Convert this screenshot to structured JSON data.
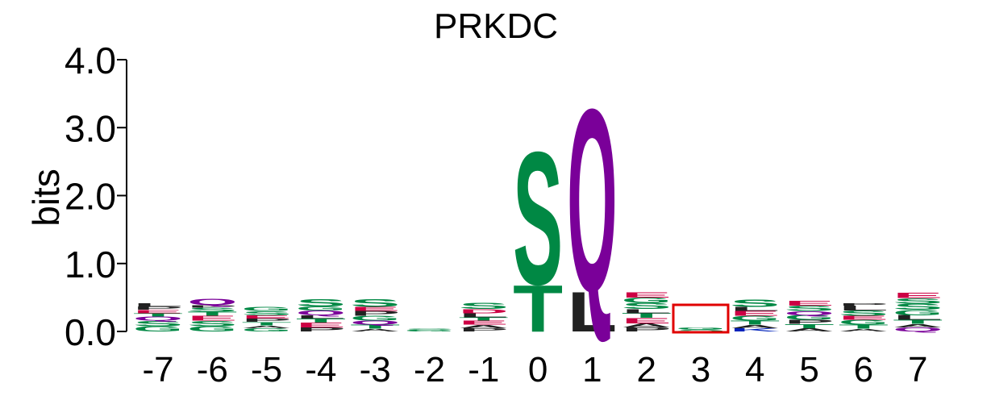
{
  "chart_data": {
    "type": "sequence-logo",
    "title": "PRKDC",
    "xlabel": "",
    "ylabel": "bits",
    "ylim": [
      0,
      4
    ],
    "yticks": [
      "0.0",
      "1.0",
      "2.0",
      "3.0",
      "4.0"
    ],
    "positions": [
      "-7",
      "-6",
      "-5",
      "-4",
      "-3",
      "-2",
      "-1",
      "0",
      "1",
      "2",
      "3",
      "4",
      "5",
      "6",
      "7"
    ],
    "highlighted_position": "3",
    "colors": {
      "polar": "#008844",
      "acidic": "#cc0044",
      "basic": "#0022bb",
      "hydrophobic": "#222222",
      "amide": "#7a0099",
      "highlight_box": "#e00000"
    },
    "letter_colors": {
      "S": "#008844",
      "T": "#008844",
      "G": "#008844",
      "C": "#008844",
      "Y": "#008844",
      "Q": "#7a0099",
      "N": "#7a0099",
      "D": "#cc0044",
      "E": "#cc0044",
      "K": "#0022bb",
      "R": "#0022bb",
      "H": "#0022bb",
      "L": "#222222",
      "A": "#222222",
      "V": "#222222",
      "I": "#222222",
      "P": "#222222",
      "M": "#222222",
      "F": "#222222",
      "W": "#222222"
    },
    "stacks": [
      {
        "position": "-7",
        "letters": [
          {
            "aa": "G",
            "bits": 0.08
          },
          {
            "aa": "S",
            "bits": 0.08
          },
          {
            "aa": "Q",
            "bits": 0.06
          },
          {
            "aa": "T",
            "bits": 0.05
          },
          {
            "aa": "E",
            "bits": 0.05
          },
          {
            "aa": "P",
            "bits": 0.05
          },
          {
            "aa": "L",
            "bits": 0.05
          }
        ]
      },
      {
        "position": "-6",
        "letters": [
          {
            "aa": "G",
            "bits": 0.08
          },
          {
            "aa": "S",
            "bits": 0.08
          },
          {
            "aa": "E",
            "bits": 0.07
          },
          {
            "aa": "T",
            "bits": 0.06
          },
          {
            "aa": "S",
            "bits": 0.06
          },
          {
            "aa": "P",
            "bits": 0.04
          },
          {
            "aa": "Q",
            "bits": 0.09
          }
        ]
      },
      {
        "position": "-5",
        "letters": [
          {
            "aa": "G",
            "bits": 0.05
          },
          {
            "aa": "A",
            "bits": 0.04
          },
          {
            "aa": "T",
            "bits": 0.05
          },
          {
            "aa": "P",
            "bits": 0.05
          },
          {
            "aa": "E",
            "bits": 0.05
          },
          {
            "aa": "S",
            "bits": 0.06
          },
          {
            "aa": "G",
            "bits": 0.06
          }
        ]
      },
      {
        "position": "-4",
        "letters": [
          {
            "aa": "P",
            "bits": 0.06
          },
          {
            "aa": "E",
            "bits": 0.07
          },
          {
            "aa": "T",
            "bits": 0.06
          },
          {
            "aa": "L",
            "bits": 0.05
          },
          {
            "aa": "Q",
            "bits": 0.07
          },
          {
            "aa": "G",
            "bits": 0.06
          },
          {
            "aa": "S",
            "bits": 0.11
          }
        ]
      },
      {
        "position": "-3",
        "letters": [
          {
            "aa": "A",
            "bits": 0.04
          },
          {
            "aa": "T",
            "bits": 0.06
          },
          {
            "aa": "Q",
            "bits": 0.06
          },
          {
            "aa": "G",
            "bits": 0.07
          },
          {
            "aa": "P",
            "bits": 0.07
          },
          {
            "aa": "E",
            "bits": 0.06
          },
          {
            "aa": "S",
            "bits": 0.12
          }
        ]
      },
      {
        "position": "-2",
        "letters": [
          {
            "aa": "G",
            "bits": 0.02
          },
          {
            "aa": "S",
            "bits": 0.02
          }
        ]
      },
      {
        "position": "-1",
        "letters": [
          {
            "aa": "P",
            "bits": 0.05
          },
          {
            "aa": "A",
            "bits": 0.05
          },
          {
            "aa": "E",
            "bits": 0.06
          },
          {
            "aa": "T",
            "bits": 0.05
          },
          {
            "aa": "L",
            "bits": 0.06
          },
          {
            "aa": "D",
            "bits": 0.06
          },
          {
            "aa": "S",
            "bits": 0.09
          }
        ]
      },
      {
        "position": "0",
        "letters": [
          {
            "aa": "T",
            "bits": 0.7
          },
          {
            "aa": "S",
            "bits": 2.0
          }
        ]
      },
      {
        "position": "1",
        "letters": [
          {
            "aa": "L",
            "bits": 0.6
          },
          {
            "aa": "Q",
            "bits": 2.75
          }
        ]
      },
      {
        "position": "2",
        "letters": [
          {
            "aa": "P",
            "bits": 0.06
          },
          {
            "aa": "A",
            "bits": 0.06
          },
          {
            "aa": "E",
            "bits": 0.08
          },
          {
            "aa": "T",
            "bits": 0.07
          },
          {
            "aa": "L",
            "bits": 0.06
          },
          {
            "aa": "S",
            "bits": 0.09
          },
          {
            "aa": "G",
            "bits": 0.08
          },
          {
            "aa": "E",
            "bits": 0.08
          }
        ]
      },
      {
        "position": "3",
        "letters": [
          {
            "aa": "S",
            "bits": 0.03
          },
          {
            "aa": "G",
            "bits": 0.03
          }
        ]
      },
      {
        "position": "4",
        "letters": [
          {
            "aa": "K",
            "bits": 0.05
          },
          {
            "aa": "A",
            "bits": 0.05
          },
          {
            "aa": "T",
            "bits": 0.06
          },
          {
            "aa": "G",
            "bits": 0.07
          },
          {
            "aa": "E",
            "bits": 0.07
          },
          {
            "aa": "L",
            "bits": 0.06
          },
          {
            "aa": "S",
            "bits": 0.11
          }
        ]
      },
      {
        "position": "5",
        "letters": [
          {
            "aa": "A",
            "bits": 0.05
          },
          {
            "aa": "T",
            "bits": 0.06
          },
          {
            "aa": "P",
            "bits": 0.06
          },
          {
            "aa": "G",
            "bits": 0.07
          },
          {
            "aa": "Q",
            "bits": 0.06
          },
          {
            "aa": "S",
            "bits": 0.08
          },
          {
            "aa": "E",
            "bits": 0.07
          }
        ]
      },
      {
        "position": "6",
        "letters": [
          {
            "aa": "A",
            "bits": 0.04
          },
          {
            "aa": "T",
            "bits": 0.06
          },
          {
            "aa": "G",
            "bits": 0.07
          },
          {
            "aa": "E",
            "bits": 0.06
          },
          {
            "aa": "S",
            "bits": 0.08
          },
          {
            "aa": "L",
            "bits": 0.07
          },
          {
            "aa": "P",
            "bits": 0.04
          }
        ]
      },
      {
        "position": "7",
        "letters": [
          {
            "aa": "Q",
            "bits": 0.06
          },
          {
            "aa": "A",
            "bits": 0.05
          },
          {
            "aa": "T",
            "bits": 0.06
          },
          {
            "aa": "L",
            "bits": 0.07
          },
          {
            "aa": "G",
            "bits": 0.08
          },
          {
            "aa": "S",
            "bits": 0.09
          },
          {
            "aa": "S",
            "bits": 0.08
          },
          {
            "aa": "E",
            "bits": 0.08
          }
        ]
      }
    ]
  }
}
